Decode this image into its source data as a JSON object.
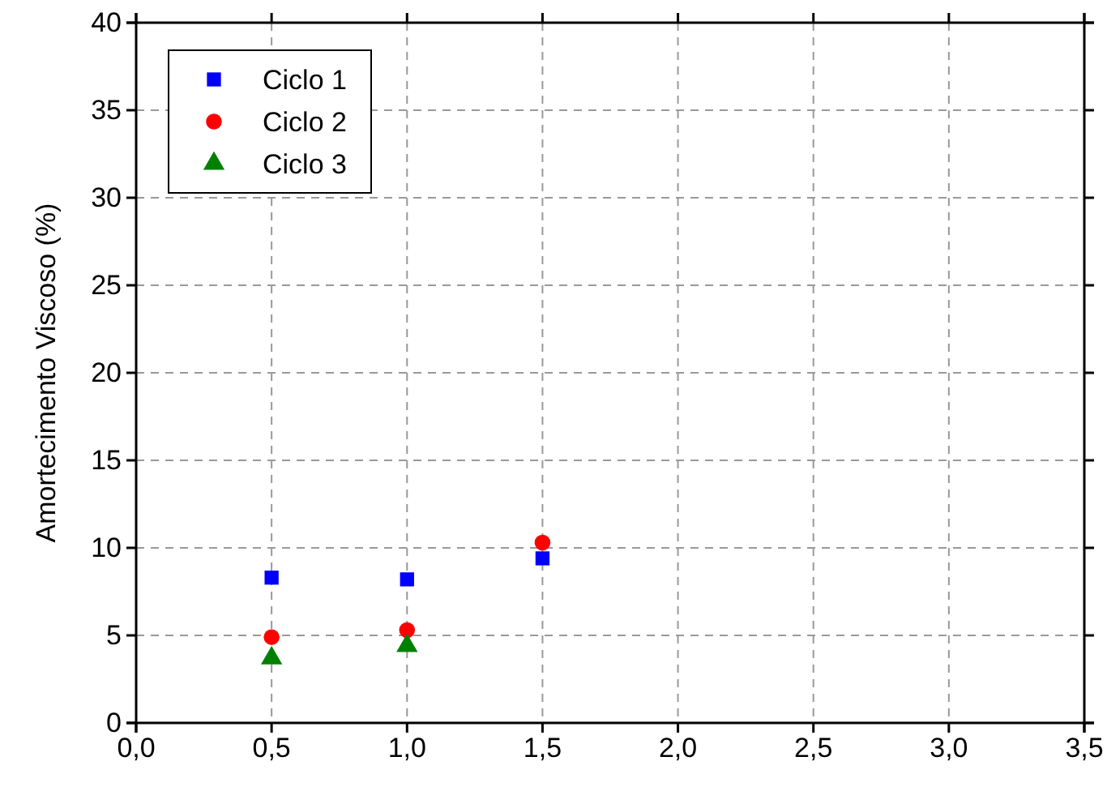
{
  "chart_data": {
    "type": "scatter",
    "ylabel": "Amortecimento Viscoso (%)",
    "x": [
      0.5,
      1.0,
      1.5
    ],
    "xlim": [
      0,
      3.5
    ],
    "xticks": [
      {
        "value": 0,
        "label": "0,0"
      },
      {
        "value": 0.5,
        "label": "0,5"
      },
      {
        "value": 1,
        "label": "1,0"
      },
      {
        "value": 1.5,
        "label": "1,5"
      },
      {
        "value": 2,
        "label": "2,0"
      },
      {
        "value": 2.5,
        "label": "2,5"
      },
      {
        "value": 3,
        "label": "3,0"
      },
      {
        "value": 3.5,
        "label": "3,5"
      }
    ],
    "ylim": [
      0,
      40
    ],
    "yticks": [
      0,
      5,
      10,
      15,
      20,
      25,
      30,
      35,
      40
    ],
    "grid": true,
    "legend": "top left",
    "series": [
      {
        "name": "Ciclo 1",
        "color": "#0000ff",
        "marker": "square",
        "values": [
          8.3,
          8.2,
          9.4
        ]
      },
      {
        "name": "Ciclo 2",
        "color": "#ff0000",
        "marker": "circle",
        "values": [
          4.9,
          5.3,
          10.3
        ]
      },
      {
        "name": "Ciclo 3",
        "color": "#008000",
        "marker": "triangle",
        "values": [
          3.7,
          4.4,
          null
        ]
      }
    ]
  }
}
